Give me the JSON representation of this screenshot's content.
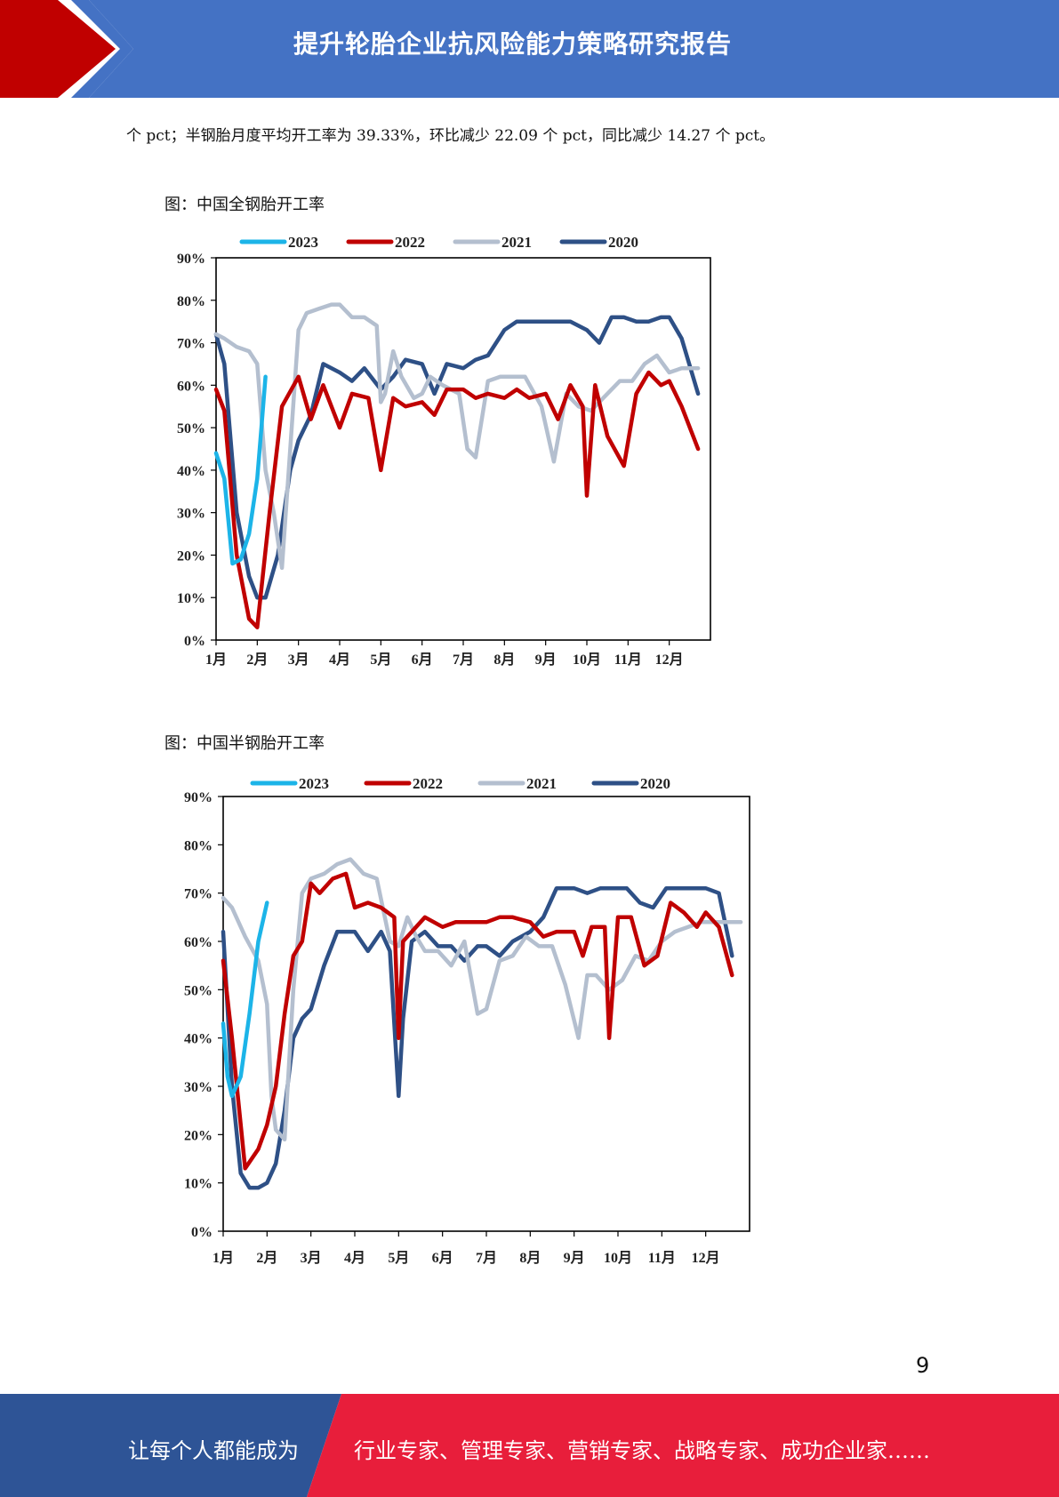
{
  "header": {
    "title": "提升轮胎企业抗风险能力策略研究报告",
    "colors": {
      "bar": "#4472c4",
      "accent": "#c00000"
    }
  },
  "body": {
    "intro_text": "个 pct；半钢胎月度平均开工率为 39.33%，环比减少 22.09 个 pct，同比减少 14.27 个 pct。"
  },
  "figures": [
    {
      "caption": "图：中国全钢胎开工率"
    },
    {
      "caption": "图：中国半钢胎开工率"
    }
  ],
  "chart_data": [
    {
      "type": "line",
      "title": "",
      "ylim": [
        0,
        90
      ],
      "y_ticks": [
        "0%",
        "10%",
        "20%",
        "30%",
        "40%",
        "50%",
        "60%",
        "70%",
        "80%",
        "90%"
      ],
      "x_ticks": [
        "1月",
        "2月",
        "3月",
        "4月",
        "5月",
        "6月",
        "7月",
        "8月",
        "9月",
        "10月",
        "11月",
        "12月"
      ],
      "legend": "top",
      "grid": false,
      "series": [
        {
          "name": "2023",
          "color": "#1cb4e8",
          "x": [
            1.0,
            1.2,
            1.4,
            1.6,
            1.8,
            2.0,
            2.1,
            2.2
          ],
          "y": [
            44,
            38,
            18,
            19,
            25,
            38,
            50,
            62
          ]
        },
        {
          "name": "2022",
          "color": "#c00000",
          "x": [
            1.0,
            1.2,
            1.5,
            1.8,
            2.0,
            2.3,
            2.6,
            3.0,
            3.3,
            3.6,
            4.0,
            4.3,
            4.7,
            5.0,
            5.3,
            5.6,
            6.0,
            6.3,
            6.6,
            7.0,
            7.3,
            7.6,
            8.0,
            8.3,
            8.6,
            9.0,
            9.3,
            9.6,
            9.9,
            10.0,
            10.2,
            10.5,
            10.9,
            11.2,
            11.5,
            11.8,
            12.0,
            12.3,
            12.7
          ],
          "y": [
            59,
            54,
            20,
            5,
            3,
            30,
            55,
            62,
            52,
            60,
            50,
            58,
            57,
            40,
            57,
            55,
            56,
            53,
            59,
            59,
            57,
            58,
            57,
            59,
            57,
            58,
            52,
            60,
            55,
            34,
            60,
            48,
            41,
            58,
            63,
            60,
            61,
            55,
            45
          ]
        },
        {
          "name": "2021",
          "color": "#b4bfcf",
          "x": [
            1.0,
            1.2,
            1.5,
            1.8,
            2.0,
            2.2,
            2.4,
            2.6,
            2.8,
            3.0,
            3.2,
            3.5,
            3.8,
            4.0,
            4.3,
            4.6,
            4.9,
            5.0,
            5.1,
            5.3,
            5.5,
            5.8,
            6.0,
            6.2,
            6.5,
            6.9,
            7.1,
            7.3,
            7.6,
            7.9,
            8.2,
            8.5,
            8.9,
            9.2,
            9.5,
            9.8,
            10.1,
            10.4,
            10.8,
            11.1,
            11.4,
            11.7,
            12.0,
            12.3,
            12.7
          ],
          "y": [
            72,
            71,
            69,
            68,
            65,
            40,
            30,
            17,
            45,
            73,
            77,
            78,
            79,
            79,
            76,
            76,
            74,
            56,
            58,
            68,
            62,
            57,
            58,
            62,
            60,
            58,
            45,
            43,
            61,
            62,
            62,
            62,
            55,
            42,
            58,
            55,
            54,
            57,
            61,
            61,
            65,
            67,
            63,
            64,
            64
          ]
        },
        {
          "name": "2020",
          "color": "#2e5086",
          "x": [
            1.0,
            1.2,
            1.5,
            1.8,
            2.0,
            2.2,
            2.5,
            2.8,
            3.0,
            3.3,
            3.6,
            4.0,
            4.3,
            4.6,
            5.0,
            5.3,
            5.6,
            6.0,
            6.3,
            6.6,
            7.0,
            7.3,
            7.6,
            8.0,
            8.3,
            8.6,
            9.0,
            9.3,
            9.6,
            10.0,
            10.3,
            10.6,
            10.9,
            11.2,
            11.5,
            11.8,
            12.0,
            12.3,
            12.7
          ],
          "y": [
            72,
            65,
            30,
            15,
            10,
            10,
            20,
            40,
            47,
            53,
            65,
            63,
            61,
            64,
            59,
            62,
            66,
            65,
            58,
            65,
            64,
            66,
            67,
            73,
            75,
            75,
            75,
            75,
            75,
            73,
            70,
            76,
            76,
            75,
            75,
            76,
            76,
            71,
            58
          ]
        }
      ]
    },
    {
      "type": "line",
      "title": "",
      "ylim": [
        0,
        90
      ],
      "y_ticks": [
        "0%",
        "10%",
        "20%",
        "30%",
        "40%",
        "50%",
        "60%",
        "70%",
        "80%",
        "90%"
      ],
      "x_ticks": [
        "1月",
        "2月",
        "3月",
        "4月",
        "5月",
        "6月",
        "7月",
        "8月",
        "9月",
        "10月",
        "11月",
        "12月"
      ],
      "legend": "top",
      "grid": false,
      "series": [
        {
          "name": "2023",
          "color": "#1cb4e8",
          "x": [
            1.0,
            1.1,
            1.2,
            1.4,
            1.6,
            1.8,
            2.0
          ],
          "y": [
            43,
            32,
            28,
            32,
            45,
            60,
            68
          ]
        },
        {
          "name": "2022",
          "color": "#c00000",
          "x": [
            1.0,
            1.2,
            1.5,
            1.8,
            2.0,
            2.2,
            2.4,
            2.6,
            2.8,
            3.0,
            3.2,
            3.5,
            3.8,
            4.0,
            4.3,
            4.6,
            4.9,
            5.0,
            5.1,
            5.3,
            5.6,
            6.0,
            6.3,
            6.6,
            7.0,
            7.3,
            7.6,
            8.0,
            8.3,
            8.6,
            9.0,
            9.2,
            9.4,
            9.7,
            9.8,
            10.0,
            10.3,
            10.6,
            10.9,
            11.2,
            11.5,
            11.8,
            12.0,
            12.3,
            12.6
          ],
          "y": [
            56,
            40,
            13,
            17,
            22,
            30,
            45,
            57,
            60,
            72,
            70,
            73,
            74,
            67,
            68,
            67,
            65,
            40,
            60,
            62,
            65,
            63,
            64,
            64,
            64,
            65,
            65,
            64,
            61,
            62,
            62,
            57,
            63,
            63,
            40,
            65,
            65,
            55,
            57,
            68,
            66,
            63,
            66,
            63,
            53
          ]
        },
        {
          "name": "2021",
          "color": "#b4bfcf",
          "x": [
            1.0,
            1.2,
            1.5,
            1.8,
            2.0,
            2.1,
            2.2,
            2.4,
            2.6,
            2.8,
            3.0,
            3.3,
            3.6,
            3.9,
            4.2,
            4.5,
            4.8,
            5.0,
            5.2,
            5.4,
            5.6,
            5.9,
            6.2,
            6.5,
            6.8,
            7.0,
            7.3,
            7.6,
            7.9,
            8.2,
            8.5,
            8.8,
            9.1,
            9.3,
            9.5,
            9.8,
            10.1,
            10.4,
            10.7,
            11.0,
            11.3,
            11.6,
            11.9,
            12.2,
            12.5,
            12.8
          ],
          "y": [
            69,
            67,
            61,
            56,
            47,
            28,
            21,
            19,
            50,
            70,
            73,
            74,
            76,
            77,
            74,
            73,
            60,
            59,
            65,
            61,
            58,
            58,
            55,
            60,
            45,
            46,
            56,
            57,
            61,
            59,
            59,
            51,
            40,
            53,
            53,
            50,
            52,
            57,
            56,
            60,
            62,
            63,
            64,
            64,
            64,
            64
          ]
        },
        {
          "name": "2020",
          "color": "#2e5086",
          "x": [
            1.0,
            1.2,
            1.4,
            1.6,
            1.8,
            2.0,
            2.2,
            2.4,
            2.6,
            2.8,
            3.0,
            3.3,
            3.6,
            4.0,
            4.3,
            4.6,
            4.8,
            5.0,
            5.1,
            5.3,
            5.6,
            5.9,
            6.2,
            6.5,
            6.8,
            7.0,
            7.3,
            7.6,
            8.0,
            8.3,
            8.6,
            9.0,
            9.3,
            9.6,
            9.9,
            10.2,
            10.5,
            10.8,
            11.1,
            11.4,
            11.7,
            12.0,
            12.3,
            12.6
          ],
          "y": [
            62,
            30,
            12,
            9,
            9,
            10,
            14,
            25,
            40,
            44,
            46,
            55,
            62,
            62,
            58,
            62,
            58,
            28,
            44,
            60,
            62,
            59,
            59,
            56,
            59,
            59,
            57,
            60,
            62,
            65,
            71,
            71,
            70,
            71,
            71,
            71,
            68,
            67,
            71,
            71,
            71,
            71,
            70,
            57
          ]
        }
      ]
    }
  ],
  "page": {
    "number": "9"
  },
  "footer": {
    "left_text": "让每个人都能成为",
    "right_text": "行业专家、管理专家、营销专家、战略专家、成功企业家……",
    "colors": {
      "left": "#2e5496",
      "right": "#e81e3b"
    }
  }
}
